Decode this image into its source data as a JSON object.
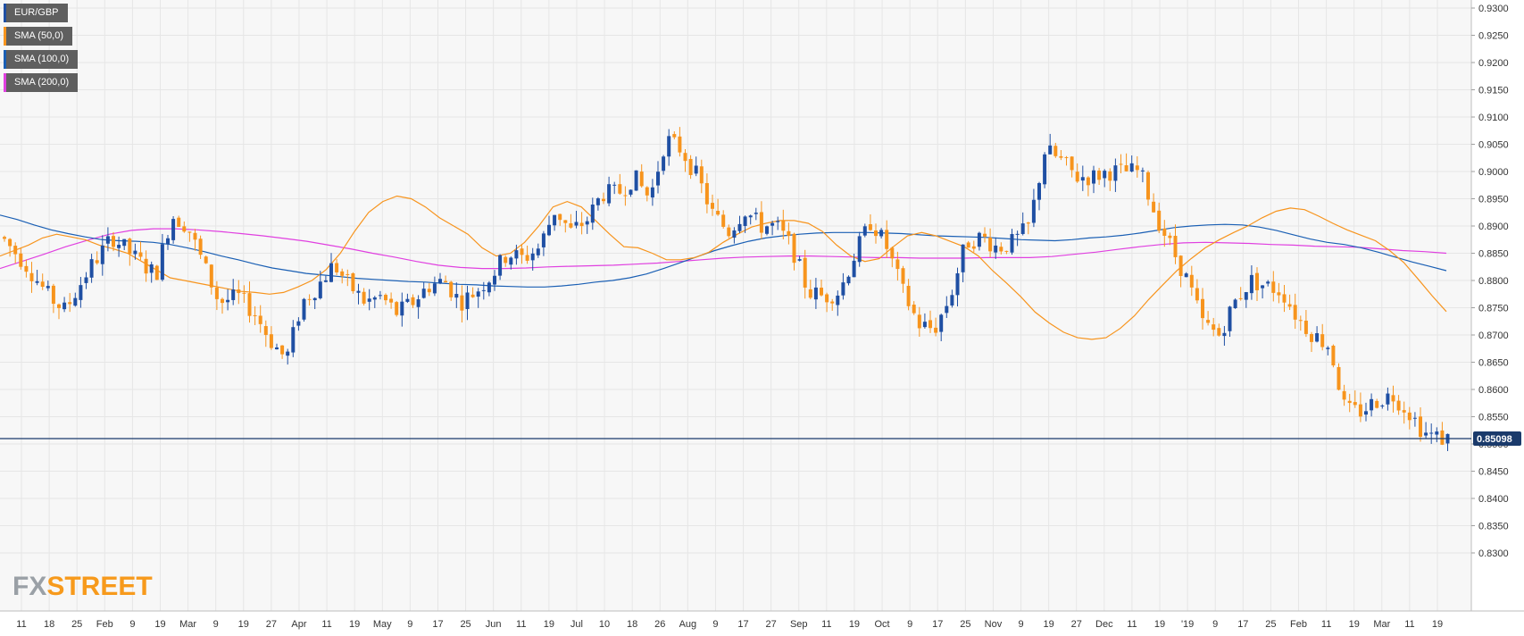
{
  "legend": [
    {
      "label": "EUR/GBP",
      "color": "#1f4fa3"
    },
    {
      "label": "SMA (50,0)",
      "color": "#f7941d"
    },
    {
      "label": "SMA (100,0)",
      "color": "#1a5fb4"
    },
    {
      "label": "SMA (200,0)",
      "color": "#e040e0"
    }
  ],
  "logo": {
    "fx": "FX",
    "street": "STREET"
  },
  "chart_data": {
    "type": "candlestick",
    "title": "",
    "symbol": "EUR/GBP",
    "current_price": "0.85098",
    "y_ticks": [
      "0.9300",
      "0.9250",
      "0.9200",
      "0.9150",
      "0.9100",
      "0.9050",
      "0.9000",
      "0.8950",
      "0.8900",
      "0.8850",
      "0.8800",
      "0.8750",
      "0.8700",
      "0.8650",
      "0.8600",
      "0.8550",
      "0.8500",
      "0.8450",
      "0.8400",
      "0.8350",
      "0.8300"
    ],
    "ylim": [
      0.8297,
      0.9303
    ],
    "x_ticks": [
      "11",
      "18",
      "25",
      "Feb",
      "9",
      "19",
      "Mar",
      "9",
      "19",
      "27",
      "Apr",
      "11",
      "19",
      "May",
      "9",
      "17",
      "25",
      "Jun",
      "11",
      "19",
      "Jul",
      "10",
      "18",
      "26",
      "Aug",
      "9",
      "17",
      "27",
      "Sep",
      "11",
      "19",
      "Oct",
      "9",
      "17",
      "25",
      "Nov",
      "9",
      "19",
      "27",
      "Dec",
      "11",
      "19",
      "'19",
      "9",
      "17",
      "25",
      "Feb",
      "11",
      "19",
      "Mar",
      "11",
      "19"
    ],
    "colors": {
      "up": "#1f4fa3",
      "down": "#f7941d",
      "sma50": "#f7941d",
      "sma100": "#1a5fb4",
      "sma200": "#e040e0",
      "price_line": "#1a3a6b",
      "grid": "#e6e6e6",
      "bg": "#f7f7f7"
    },
    "grid": true,
    "legend_position": "top-left",
    "sma50": [
      0.8845,
      0.8855,
      0.8865,
      0.8878,
      0.8885,
      0.888,
      0.8875,
      0.8865,
      0.8858,
      0.885,
      0.8835,
      0.882,
      0.8805,
      0.88,
      0.8795,
      0.879,
      0.8785,
      0.878,
      0.8778,
      0.8775,
      0.8778,
      0.8788,
      0.88,
      0.882,
      0.885,
      0.889,
      0.8925,
      0.8945,
      0.8955,
      0.895,
      0.8935,
      0.8915,
      0.89,
      0.8885,
      0.886,
      0.8845,
      0.885,
      0.887,
      0.89,
      0.8935,
      0.8945,
      0.8935,
      0.891,
      0.8885,
      0.8862,
      0.886,
      0.885,
      0.8838,
      0.8838,
      0.8842,
      0.8852,
      0.887,
      0.8885,
      0.8898,
      0.8905,
      0.891,
      0.891,
      0.8905,
      0.889,
      0.8865,
      0.8845,
      0.8835,
      0.884,
      0.8862,
      0.8882,
      0.8888,
      0.8882,
      0.8872,
      0.8862,
      0.8845,
      0.8818,
      0.8795,
      0.877,
      0.8742,
      0.8722,
      0.8705,
      0.8695,
      0.8692,
      0.8695,
      0.8712,
      0.8735,
      0.8765,
      0.8792,
      0.8818,
      0.884,
      0.886,
      0.8875,
      0.8888,
      0.89,
      0.8915,
      0.8927,
      0.8933,
      0.893,
      0.8918,
      0.8905,
      0.8893,
      0.8883,
      0.8873,
      0.8855,
      0.8833,
      0.8803,
      0.8772,
      0.8743
    ],
    "sma100": [
      0.892,
      0.8912,
      0.8902,
      0.8893,
      0.8886,
      0.888,
      0.8875,
      0.8873,
      0.8872,
      0.887,
      0.8866,
      0.886,
      0.8853,
      0.8845,
      0.8838,
      0.883,
      0.8823,
      0.8818,
      0.8813,
      0.881,
      0.8807,
      0.8804,
      0.8802,
      0.88,
      0.8798,
      0.8797,
      0.8795,
      0.8793,
      0.8792,
      0.879,
      0.8789,
      0.8788,
      0.8788,
      0.879,
      0.8793,
      0.8797,
      0.88,
      0.8805,
      0.8812,
      0.8822,
      0.8833,
      0.8844,
      0.8855,
      0.8864,
      0.8872,
      0.8878,
      0.8882,
      0.8885,
      0.8887,
      0.8888,
      0.8888,
      0.8888,
      0.8887,
      0.8886,
      0.8884,
      0.8882,
      0.8881,
      0.888,
      0.8879,
      0.8877,
      0.8875,
      0.8874,
      0.8873,
      0.8875,
      0.8878,
      0.888,
      0.8883,
      0.8887,
      0.8892,
      0.8897,
      0.89,
      0.8902,
      0.8903,
      0.8902,
      0.8898,
      0.8892,
      0.8884,
      0.8876,
      0.887,
      0.8866,
      0.886,
      0.8852,
      0.8843,
      0.8834,
      0.8826,
      0.8818
    ],
    "sma200": [
      0.8822,
      0.8835,
      0.8848,
      0.8862,
      0.8874,
      0.8885,
      0.8892,
      0.8895,
      0.8895,
      0.8893,
      0.889,
      0.8886,
      0.8882,
      0.8877,
      0.8872,
      0.8865,
      0.8858,
      0.885,
      0.8843,
      0.8835,
      0.8828,
      0.8824,
      0.8822,
      0.8822,
      0.8823,
      0.8825,
      0.8826,
      0.8827,
      0.8828,
      0.883,
      0.8832,
      0.8835,
      0.8838,
      0.8841,
      0.8843,
      0.8844,
      0.8845,
      0.8845,
      0.8844,
      0.8843,
      0.8842,
      0.8842,
      0.8841,
      0.8841,
      0.8841,
      0.8842,
      0.8842,
      0.8842,
      0.8844,
      0.8848,
      0.8852,
      0.8857,
      0.8862,
      0.8866,
      0.8869,
      0.887,
      0.8869,
      0.8868,
      0.8866,
      0.8865,
      0.8863,
      0.8862,
      0.8861,
      0.8858,
      0.8855,
      0.8853,
      0.885
    ]
  }
}
